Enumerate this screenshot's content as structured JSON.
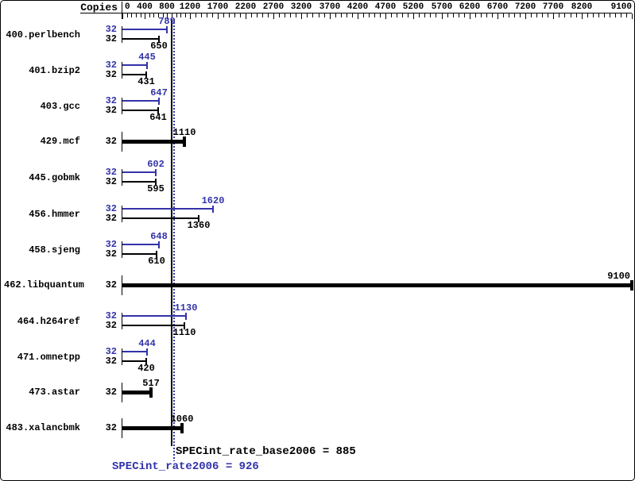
{
  "header": {
    "copies_label": "Copies"
  },
  "colors": {
    "peak": "#3333aa",
    "base": "#000000"
  },
  "axis": {
    "max": 9100,
    "tick_values": [
      0,
      400,
      800,
      1200,
      1700,
      2200,
      2700,
      3200,
      3700,
      4200,
      4700,
      5200,
      5700,
      6200,
      6700,
      7200,
      7700,
      8200,
      9100
    ],
    "tick_labels": [
      "0",
      "400",
      "800",
      "1200",
      "1700",
      "2200",
      "2700",
      "3200",
      "3700",
      "4200",
      "4700",
      "5200",
      "5700",
      "6200",
      "6700",
      "7200",
      "7700",
      "8200",
      "9100"
    ],
    "minor_step_low": 80,
    "minor_step_high": 100,
    "low_high_boundary": 1200
  },
  "benchmarks": [
    {
      "name": "400.perlbench",
      "copies": "32",
      "peak": 789,
      "base": 650,
      "merged": false
    },
    {
      "name": "401.bzip2",
      "copies": "32",
      "peak": 445,
      "base": 431,
      "merged": false
    },
    {
      "name": "403.gcc",
      "copies": "32",
      "peak": 647,
      "base": 641,
      "merged": false
    },
    {
      "name": "429.mcf",
      "copies": "32",
      "peak": 1110,
      "base": 1110,
      "merged": true
    },
    {
      "name": "445.gobmk",
      "copies": "32",
      "peak": 602,
      "base": 595,
      "merged": false
    },
    {
      "name": "456.hmmer",
      "copies": "32",
      "peak": 1620,
      "base": 1360,
      "merged": false
    },
    {
      "name": "458.sjeng",
      "copies": "32",
      "peak": 648,
      "base": 610,
      "merged": false
    },
    {
      "name": "462.libquantum",
      "copies": "32",
      "peak": 9100,
      "base": 9100,
      "merged": true
    },
    {
      "name": "464.h264ref",
      "copies": "32",
      "peak": 1130,
      "base": 1110,
      "merged": false
    },
    {
      "name": "471.omnetpp",
      "copies": "32",
      "peak": 444,
      "base": 420,
      "merged": false
    },
    {
      "name": "473.astar",
      "copies": "32",
      "peak": 517,
      "base": 517,
      "merged": true
    },
    {
      "name": "483.xalancbmk",
      "copies": "32",
      "peak": 1060,
      "base": 1060,
      "merged": true
    }
  ],
  "reference_lines": {
    "base_value": 885,
    "peak_value": 926
  },
  "footer": {
    "base_text": "SPECint_rate_base2006 = 885",
    "peak_text": "SPECint_rate2006 = 926"
  },
  "chart_data": {
    "type": "bar",
    "orientation": "horizontal",
    "title": "",
    "xlabel": "",
    "ylabel": "Copies",
    "categories": [
      "400.perlbench",
      "401.bzip2",
      "403.gcc",
      "429.mcf",
      "445.gobmk",
      "456.hmmer",
      "458.sjeng",
      "462.libquantum",
      "464.h264ref",
      "471.omnetpp",
      "473.astar",
      "483.xalancbmk"
    ],
    "copies_per_benchmark": [
      32,
      32,
      32,
      32,
      32,
      32,
      32,
      32,
      32,
      32,
      32,
      32
    ],
    "series": [
      {
        "name": "SPECint_rate2006 (peak)",
        "color": "#3333aa",
        "values": [
          789,
          445,
          647,
          1110,
          602,
          1620,
          648,
          9100,
          1130,
          444,
          517,
          1060
        ]
      },
      {
        "name": "SPECint_rate_base2006 (base)",
        "color": "#000000",
        "values": [
          650,
          431,
          641,
          1110,
          595,
          1360,
          610,
          9100,
          1110,
          420,
          517,
          1060
        ]
      }
    ],
    "merged_rows": [
      "429.mcf",
      "462.libquantum",
      "473.astar",
      "483.xalancbmk"
    ],
    "xlim": [
      0,
      9100
    ],
    "x_tick_labels": [
      0,
      400,
      800,
      1200,
      1700,
      2200,
      2700,
      3200,
      3700,
      4200,
      4700,
      5200,
      5700,
      6200,
      6700,
      7200,
      7700,
      8200,
      9100
    ],
    "reference_lines": [
      {
        "label": "SPECint_rate_base2006",
        "value": 885,
        "style": "solid",
        "color": "#000000"
      },
      {
        "label": "SPECint_rate2006",
        "value": 926,
        "style": "dotted",
        "color": "#3333aa"
      }
    ],
    "grid": false,
    "legend_position": "none"
  }
}
